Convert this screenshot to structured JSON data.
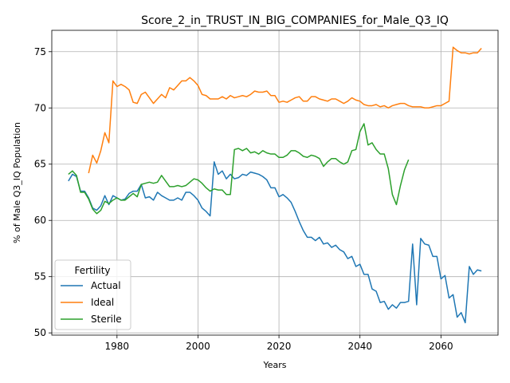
{
  "chart_data": {
    "type": "line",
    "title": "Score_2_in_TRUST_IN_BIG_COMPANIES_for_Male_Q3_IQ",
    "xlabel": "Years",
    "ylabel": "% of Male Q3_IQ Population",
    "xlim": [
      1963.9,
      2074.1
    ],
    "ylim": [
      49.8,
      76.9
    ],
    "xticks": [
      1980,
      2000,
      2020,
      2040,
      2060
    ],
    "yticks": [
      50,
      55,
      60,
      65,
      70,
      75
    ],
    "grid": true,
    "legend": {
      "title": "Fertility",
      "placement": "lower-left"
    },
    "series": [
      {
        "name": "Actual",
        "color": "#1f77b4",
        "x": [
          1968,
          1969,
          1970,
          1971,
          1972,
          1973,
          1974,
          1975,
          1976,
          1977,
          1978,
          1979,
          1980,
          1981,
          1982,
          1983,
          1984,
          1985,
          1986,
          1987,
          1988,
          1989,
          1990,
          1991,
          1992,
          1993,
          1994,
          1995,
          1996,
          1997,
          1998,
          1999,
          2000,
          2001,
          2002,
          2003,
          2004,
          2005,
          2006,
          2007,
          2008,
          2009,
          2010,
          2011,
          2012,
          2013,
          2014,
          2015,
          2016,
          2017,
          2018,
          2019,
          2020,
          2021,
          2022,
          2023,
          2024,
          2025,
          2026,
          2027,
          2028,
          2029,
          2030,
          2031,
          2032,
          2033,
          2034,
          2035,
          2036,
          2037,
          2038,
          2039,
          2040,
          2041,
          2042,
          2043,
          2044,
          2045,
          2046,
          2047,
          2048,
          2049,
          2050,
          2051,
          2052,
          2053,
          2054,
          2055,
          2056,
          2057,
          2058,
          2059,
          2060,
          2061,
          2062,
          2063,
          2064,
          2065,
          2066,
          2067,
          2068,
          2069,
          2070
        ],
        "values": [
          63.5,
          64.1,
          63.9,
          62.6,
          62.6,
          62.0,
          61.1,
          60.9,
          61.3,
          62.2,
          61.4,
          62.2,
          62.0,
          61.8,
          61.9,
          62.4,
          62.6,
          62.6,
          63.2,
          62.0,
          62.1,
          61.8,
          62.5,
          62.2,
          62.0,
          61.8,
          61.8,
          62.0,
          61.8,
          62.5,
          62.5,
          62.2,
          61.8,
          61.1,
          60.8,
          60.4,
          65.2,
          64.1,
          64.4,
          63.7,
          64.1,
          63.7,
          63.8,
          64.1,
          64.0,
          64.3,
          64.2,
          64.1,
          63.9,
          63.6,
          62.9,
          62.9,
          62.1,
          62.3,
          62.0,
          61.6,
          60.8,
          59.9,
          59.1,
          58.5,
          58.5,
          58.2,
          58.5,
          57.9,
          58.0,
          57.6,
          57.8,
          57.4,
          57.2,
          56.6,
          56.8,
          55.9,
          56.1,
          55.2,
          55.2,
          53.9,
          53.7,
          52.7,
          52.8,
          52.1,
          52.5,
          52.2,
          52.7,
          52.7,
          52.8,
          57.9,
          52.5,
          58.4,
          57.9,
          57.8,
          56.8,
          56.8,
          54.8,
          55.1,
          53.1,
          53.4,
          51.4,
          51.8,
          50.9,
          55.9,
          55.2,
          55.6,
          55.5
        ]
      },
      {
        "name": "Ideal",
        "color": "#ff7f0e",
        "x": [
          1973,
          1974,
          1975,
          1976,
          1977,
          1978,
          1979,
          1980,
          1981,
          1982,
          1983,
          1984,
          1985,
          1986,
          1987,
          1988,
          1989,
          1990,
          1991,
          1992,
          1993,
          1994,
          1995,
          1996,
          1997,
          1998,
          1999,
          2000,
          2001,
          2002,
          2003,
          2004,
          2005,
          2006,
          2007,
          2008,
          2009,
          2010,
          2011,
          2012,
          2013,
          2014,
          2015,
          2016,
          2017,
          2018,
          2019,
          2020,
          2021,
          2022,
          2023,
          2024,
          2025,
          2026,
          2027,
          2028,
          2029,
          2030,
          2031,
          2032,
          2033,
          2034,
          2035,
          2036,
          2037,
          2038,
          2039,
          2040,
          2041,
          2042,
          2043,
          2044,
          2045,
          2046,
          2047,
          2048,
          2049,
          2050,
          2051,
          2052,
          2053,
          2054,
          2055,
          2056,
          2057,
          2058,
          2059,
          2060,
          2061,
          2062,
          2063,
          2064,
          2065,
          2066,
          2067,
          2068,
          2069,
          2070
        ],
        "values": [
          64.2,
          65.8,
          65.1,
          66.2,
          67.8,
          66.9,
          72.4,
          71.9,
          72.1,
          71.9,
          71.6,
          70.5,
          70.4,
          71.2,
          71.4,
          70.9,
          70.4,
          70.8,
          71.2,
          70.9,
          71.8,
          71.6,
          72.0,
          72.4,
          72.4,
          72.7,
          72.4,
          72.0,
          71.2,
          71.1,
          70.8,
          70.8,
          70.8,
          71.0,
          70.8,
          71.1,
          70.9,
          71.0,
          71.1,
          71.0,
          71.2,
          71.5,
          71.4,
          71.4,
          71.5,
          71.1,
          71.1,
          70.5,
          70.6,
          70.5,
          70.7,
          70.9,
          71.0,
          70.6,
          70.6,
          71.0,
          71.0,
          70.8,
          70.7,
          70.6,
          70.8,
          70.8,
          70.6,
          70.4,
          70.6,
          70.9,
          70.7,
          70.6,
          70.3,
          70.2,
          70.2,
          70.3,
          70.1,
          70.2,
          70.0,
          70.2,
          70.3,
          70.4,
          70.4,
          70.2,
          70.1,
          70.1,
          70.1,
          70.0,
          70.0,
          70.1,
          70.2,
          70.2,
          70.4,
          70.6,
          75.4,
          75.1,
          74.9,
          74.9,
          74.8,
          74.9,
          74.9,
          75.3
        ]
      },
      {
        "name": "Sterile",
        "color": "#2ca02c",
        "x": [
          1968,
          1969,
          1970,
          1971,
          1972,
          1973,
          1974,
          1975,
          1976,
          1977,
          1978,
          1979,
          1980,
          1981,
          1982,
          1983,
          1984,
          1985,
          1986,
          1987,
          1988,
          1989,
          1990,
          1991,
          1992,
          1993,
          1994,
          1995,
          1996,
          1997,
          1998,
          1999,
          2000,
          2001,
          2002,
          2003,
          2004,
          2005,
          2006,
          2007,
          2008,
          2009,
          2010,
          2011,
          2012,
          2013,
          2014,
          2015,
          2016,
          2017,
          2018,
          2019,
          2020,
          2021,
          2022,
          2023,
          2024,
          2025,
          2026,
          2027,
          2028,
          2029,
          2030,
          2031,
          2032,
          2033,
          2034,
          2035,
          2036,
          2037,
          2038,
          2039,
          2040,
          2041,
          2042,
          2043,
          2044,
          2045,
          2046,
          2047,
          2048,
          2049,
          2050,
          2051,
          2052
        ],
        "values": [
          64.1,
          64.4,
          64.0,
          62.5,
          62.5,
          61.9,
          61.0,
          60.6,
          60.9,
          61.7,
          61.5,
          61.8,
          62.0,
          61.8,
          61.8,
          62.1,
          62.4,
          62.1,
          63.2,
          63.3,
          63.4,
          63.3,
          63.4,
          64.0,
          63.5,
          63.0,
          63.0,
          63.1,
          63.0,
          63.1,
          63.4,
          63.7,
          63.6,
          63.3,
          62.9,
          62.6,
          62.8,
          62.7,
          62.7,
          62.3,
          62.3,
          66.3,
          66.4,
          66.2,
          66.4,
          66.0,
          66.1,
          65.9,
          66.2,
          66.0,
          65.9,
          65.9,
          65.6,
          65.6,
          65.8,
          66.2,
          66.2,
          66.0,
          65.7,
          65.6,
          65.8,
          65.7,
          65.5,
          64.8,
          65.2,
          65.5,
          65.5,
          65.2,
          65.0,
          65.2,
          66.2,
          66.3,
          67.9,
          68.6,
          66.7,
          66.9,
          66.3,
          65.9,
          65.9,
          64.6,
          62.3,
          61.4,
          63.1,
          64.5,
          65.4
        ]
      }
    ]
  }
}
